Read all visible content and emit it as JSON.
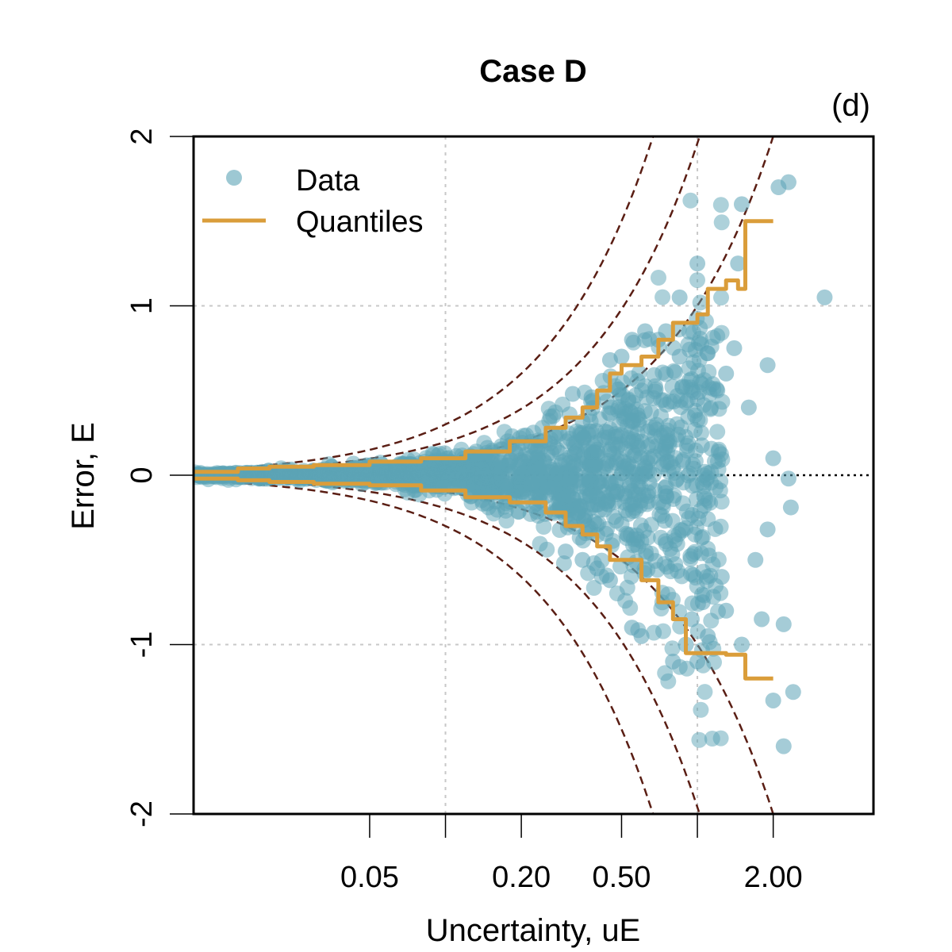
{
  "chart_data": {
    "type": "scatter",
    "title": "Case D",
    "panel_label": "(d)",
    "xlabel": "Uncertainty, uE",
    "ylabel": "Error, E",
    "x_scale": "log",
    "xlim": [
      0.01,
      5.0
    ],
    "ylim": [
      -2,
      2
    ],
    "x_ticks": [
      0.05,
      0.2,
      0.5,
      2.0
    ],
    "x_tick_labels": [
      "0.05",
      "0.20",
      "0.50",
      "2.00"
    ],
    "y_ticks": [
      -2,
      -1,
      0,
      1,
      2
    ],
    "y_tick_labels": [
      "-2",
      "-1",
      "0",
      "1",
      "2"
    ],
    "grid_x": [
      0.1,
      1.0
    ],
    "grid_y": [
      -1,
      1
    ],
    "zero_line": 0,
    "guide_curves_k": [
      1,
      1.96,
      3
    ],
    "legend": {
      "position": "top-left",
      "entries": [
        {
          "label": "Data",
          "kind": "point",
          "color": "#5BA3B6"
        },
        {
          "label": "Quantiles",
          "kind": "line",
          "color": "#DA9D3A"
        }
      ]
    },
    "colors": {
      "data": "#5BA3B6",
      "quantiles": "#DA9D3A",
      "guides": "#5A1E14",
      "grid": "#C8C8C8"
    },
    "series": [
      {
        "name": "Data",
        "points": [
          [
            0.62,
            0.85
          ],
          [
            0.7,
            0.8
          ],
          [
            0.85,
            1.05
          ],
          [
            1.0,
            1.25
          ],
          [
            1.1,
            0.72
          ],
          [
            1.3,
            0.6
          ],
          [
            1.5,
            1.6
          ],
          [
            1.45,
            1.25
          ],
          [
            1.9,
            0.65
          ],
          [
            2.1,
            1.7
          ],
          [
            2.3,
            1.73
          ],
          [
            3.2,
            1.05
          ],
          [
            1.4,
            0.75
          ],
          [
            1.6,
            0.4
          ],
          [
            2.0,
            0.1
          ],
          [
            2.3,
            -0.02
          ],
          [
            2.35,
            -0.19
          ],
          [
            1.9,
            -0.32
          ],
          [
            1.7,
            -0.5
          ],
          [
            1.3,
            -0.8
          ],
          [
            1.1,
            -0.95
          ],
          [
            1.8,
            -0.85
          ],
          [
            2.2,
            -0.88
          ],
          [
            1.5,
            -1.0
          ],
          [
            2.0,
            -1.33
          ],
          [
            2.2,
            -1.6
          ],
          [
            2.4,
            -1.28
          ],
          [
            1.0,
            -1.1
          ],
          [
            0.8,
            -1.1
          ],
          [
            0.6,
            -0.95
          ],
          [
            0.55,
            -0.9
          ],
          [
            0.9,
            -1.0
          ],
          [
            0.4,
            -0.55
          ],
          [
            0.45,
            -0.62
          ],
          [
            0.35,
            -0.5
          ],
          [
            0.3,
            -0.45
          ],
          [
            0.32,
            0.48
          ],
          [
            0.38,
            0.46
          ],
          [
            0.45,
            0.68
          ],
          [
            0.5,
            0.7
          ],
          [
            0.55,
            0.8
          ],
          [
            0.75,
            0.85
          ],
          [
            0.85,
            0.7
          ],
          [
            1.2,
            0.5
          ],
          [
            1.0,
            0.45
          ],
          [
            1.25,
            -0.6
          ],
          [
            1.05,
            -0.75
          ],
          [
            0.95,
            -0.85
          ]
        ]
      },
      {
        "name": "Quantiles",
        "upper": [
          [
            0.01,
            0.02
          ],
          [
            0.015,
            0.04
          ],
          [
            0.02,
            0.05
          ],
          [
            0.03,
            0.06
          ],
          [
            0.05,
            0.08
          ],
          [
            0.08,
            0.1
          ],
          [
            0.12,
            0.14
          ],
          [
            0.18,
            0.2
          ],
          [
            0.25,
            0.28
          ],
          [
            0.3,
            0.34
          ],
          [
            0.35,
            0.4
          ],
          [
            0.4,
            0.5
          ],
          [
            0.45,
            0.6
          ],
          [
            0.5,
            0.65
          ],
          [
            0.6,
            0.7
          ],
          [
            0.7,
            0.8
          ],
          [
            0.8,
            0.9
          ],
          [
            1.0,
            0.95
          ],
          [
            1.1,
            1.1
          ],
          [
            1.3,
            1.15
          ],
          [
            1.45,
            1.1
          ],
          [
            1.55,
            1.5
          ],
          [
            2.0,
            1.5
          ]
        ],
        "lower": [
          [
            0.01,
            -0.02
          ],
          [
            0.015,
            -0.03
          ],
          [
            0.02,
            -0.04
          ],
          [
            0.03,
            -0.05
          ],
          [
            0.05,
            -0.06
          ],
          [
            0.08,
            -0.09
          ],
          [
            0.12,
            -0.13
          ],
          [
            0.18,
            -0.16
          ],
          [
            0.25,
            -0.22
          ],
          [
            0.3,
            -0.3
          ],
          [
            0.35,
            -0.35
          ],
          [
            0.4,
            -0.42
          ],
          [
            0.45,
            -0.5
          ],
          [
            0.5,
            -0.5
          ],
          [
            0.6,
            -0.62
          ],
          [
            0.7,
            -0.75
          ],
          [
            0.8,
            -0.85
          ],
          [
            0.9,
            -1.05
          ],
          [
            1.1,
            -1.05
          ],
          [
            1.3,
            -1.06
          ],
          [
            1.55,
            -1.2
          ],
          [
            2.0,
            -1.2
          ]
        ]
      }
    ]
  }
}
